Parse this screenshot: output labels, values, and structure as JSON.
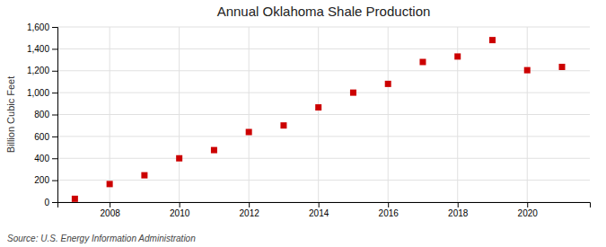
{
  "chart_data": {
    "type": "scatter",
    "title": "Annual Oklahoma Shale Production",
    "ylabel": "Billion Cubic Feet",
    "source": "Source: U.S. Energy Information Administration",
    "x": [
      2007,
      2008,
      2009,
      2010,
      2011,
      2012,
      2013,
      2014,
      2015,
      2016,
      2017,
      2018,
      2019,
      2020,
      2021
    ],
    "values": [
      30,
      165,
      245,
      400,
      475,
      640,
      700,
      865,
      1000,
      1080,
      1280,
      1330,
      1480,
      1205,
      1235
    ],
    "color": "#cc0000",
    "marker": "square",
    "xlim": [
      2006.5,
      2021.8
    ],
    "xticks": [
      2008,
      2010,
      2012,
      2014,
      2016,
      2018,
      2020
    ],
    "ylim": [
      0,
      1600
    ],
    "yticks": [
      0,
      200,
      400,
      600,
      800,
      {
        "value": 1000,
        "label": "1,000"
      },
      {
        "value": 1200,
        "label": "1,200"
      },
      {
        "value": 1400,
        "label": "1,400"
      },
      {
        "value": 1600,
        "label": "1,600"
      }
    ],
    "grid": true
  }
}
